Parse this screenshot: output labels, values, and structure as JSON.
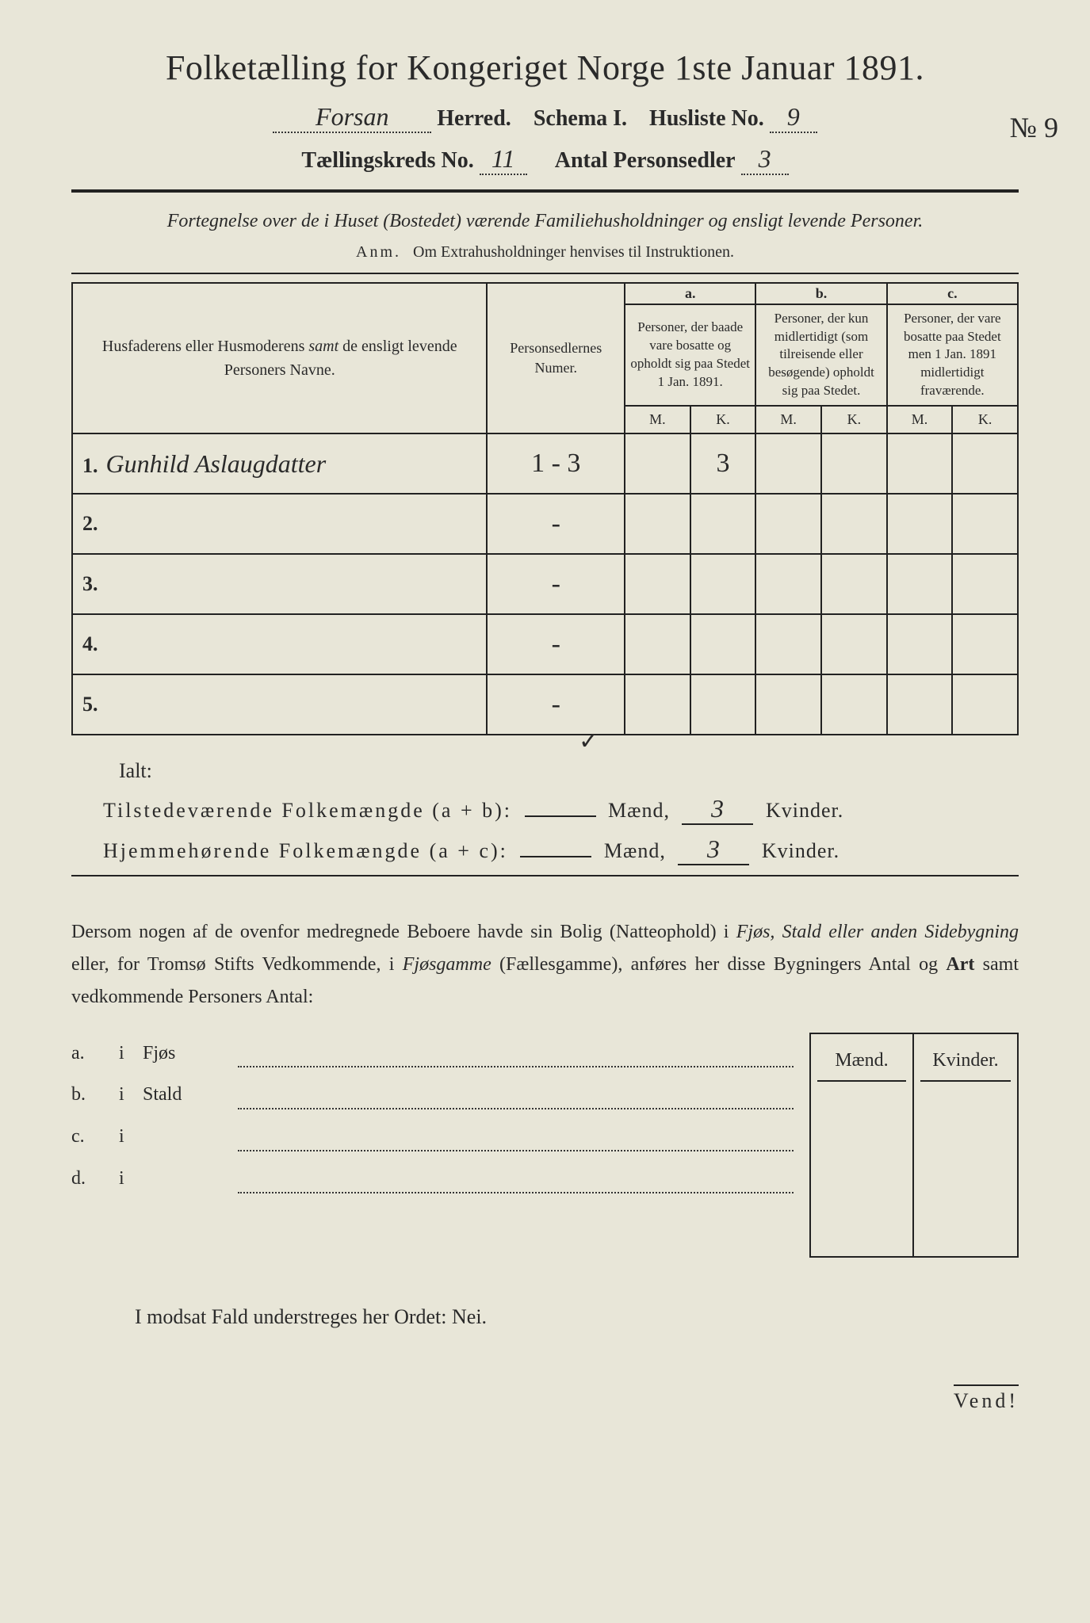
{
  "title": "Folketælling for Kongeriget Norge 1ste Januar 1891.",
  "header": {
    "herred_value": "Forsan",
    "herred_label": "Herred.",
    "schema_label": "Schema I.",
    "husliste_label": "Husliste No.",
    "husliste_value": "9",
    "margin_note": "№ 9",
    "kreds_label": "Tællingskreds No.",
    "kreds_value": "11",
    "personsedler_label": "Antal Personsedler",
    "personsedler_value": "3"
  },
  "subtitle": "Fortegnelse over de i Huset (Bostedet) værende Familiehusholdninger og ensligt levende Personer.",
  "anm_label": "Anm.",
  "anm_text": "Om Extrahusholdninger henvises til Instruktionen.",
  "table": {
    "col_name": "Husfaderens eller Husmoderens samt de ensligt levende Personers Navne.",
    "col_num": "Personsedlernes Numer.",
    "col_a_label": "a.",
    "col_a_text": "Personer, der baade vare bosatte og opholdt sig paa Stedet 1 Jan. 1891.",
    "col_b_label": "b.",
    "col_b_text": "Personer, der kun midlertidigt (som tilreisende eller besøgende) opholdt sig paa Stedet.",
    "col_c_label": "c.",
    "col_c_text": "Personer, der vare bosatte paa Stedet men 1 Jan. 1891 midlertidigt fraværende.",
    "m": "M.",
    "k": "K.",
    "rows": [
      {
        "n": "1.",
        "name": "Gunhild Aslaugdatter",
        "num": "1 - 3",
        "a_m": "",
        "a_k": "3",
        "b_m": "",
        "b_k": "",
        "c_m": "",
        "c_k": ""
      },
      {
        "n": "2.",
        "name": "",
        "num": "-",
        "a_m": "",
        "a_k": "",
        "b_m": "",
        "b_k": "",
        "c_m": "",
        "c_k": ""
      },
      {
        "n": "3.",
        "name": "",
        "num": "-",
        "a_m": "",
        "a_k": "",
        "b_m": "",
        "b_k": "",
        "c_m": "",
        "c_k": ""
      },
      {
        "n": "4.",
        "name": "",
        "num": "-",
        "a_m": "",
        "a_k": "",
        "b_m": "",
        "b_k": "",
        "c_m": "",
        "c_k": ""
      },
      {
        "n": "5.",
        "name": "",
        "num": "-",
        "a_m": "",
        "a_k": "",
        "b_m": "",
        "b_k": "",
        "c_m": "",
        "c_k": ""
      }
    ]
  },
  "ialt": "Ialt:",
  "summary": {
    "line1_label": "Tilstedeværende Folkemængde (a + b):",
    "line2_label": "Hjemmehørende Folkemængde (a + c):",
    "maend": "Mænd,",
    "kvinder": "Kvinder.",
    "line1_m": "",
    "line1_k": "3",
    "line2_m": "",
    "line2_k": "3"
  },
  "para": {
    "p1a": "Dersom nogen af de ovenfor medregnede Beboere havde sin Bolig (Natteophold) i ",
    "p1b": "Fjøs, Stald eller anden Sidebygning",
    "p1c": " eller, for Tromsø Stifts Vedkommende, i ",
    "p1d": "Fjøsgamme",
    "p1e": " (Fællesgamme), anføres her disse Bygningers Antal og ",
    "p1f": "Art",
    "p1g": " samt vedkommende Personers Antal:"
  },
  "subrows": [
    {
      "l": "a.",
      "i": "i",
      "name": "Fjøs"
    },
    {
      "l": "b.",
      "i": "i",
      "name": "Stald"
    },
    {
      "l": "c.",
      "i": "i",
      "name": ""
    },
    {
      "l": "d.",
      "i": "i",
      "name": ""
    }
  ],
  "mk_header": {
    "m": "Mænd.",
    "k": "Kvinder."
  },
  "footer": "I modsat Fald understreges her Ordet: Nei.",
  "vend": "Vend!",
  "colors": {
    "paper": "#e8e6d8",
    "ink": "#2a2a2a"
  }
}
